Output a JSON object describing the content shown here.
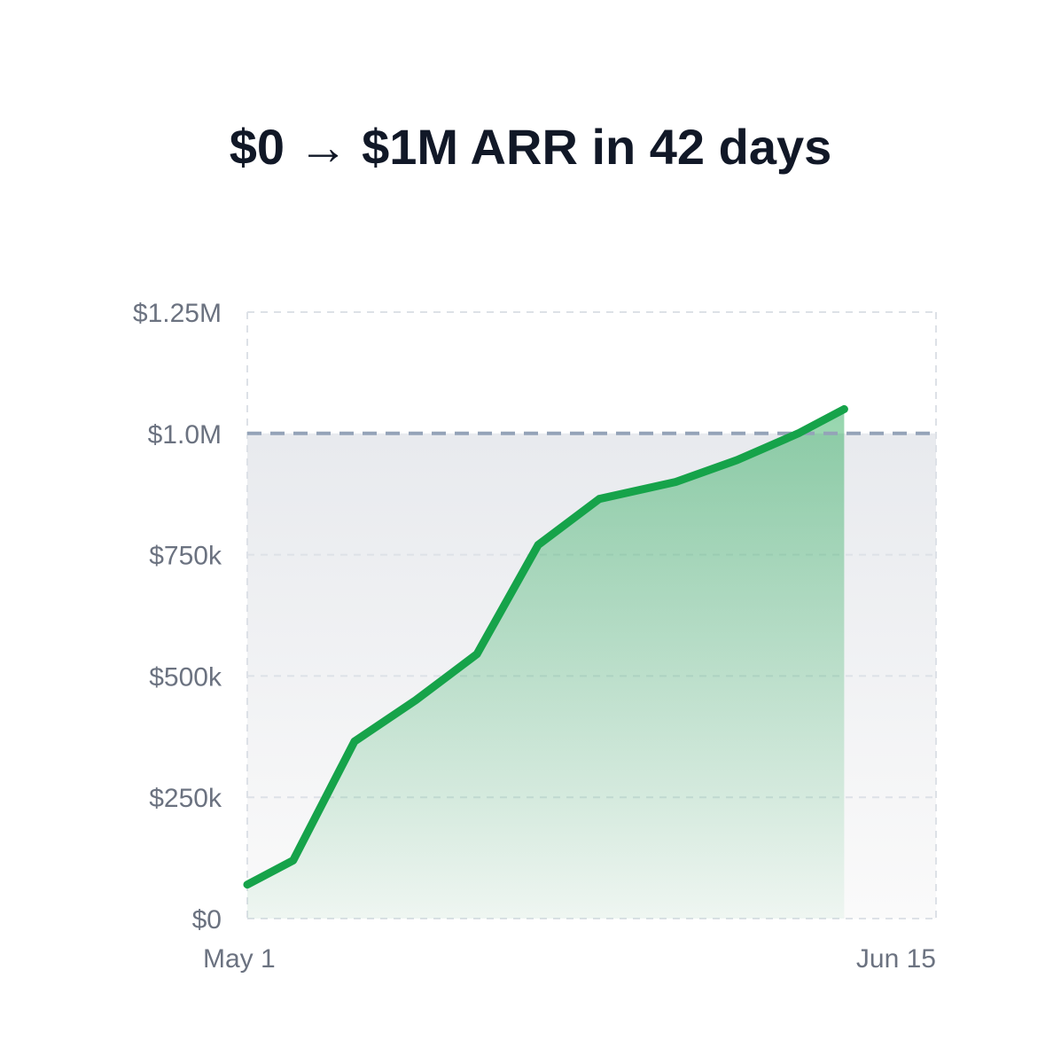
{
  "chart_data": {
    "type": "area",
    "title": "$0 → $1M ARR in 42 days",
    "xlabel": "",
    "ylabel": "",
    "x_tick_labels": [
      "May 1",
      "Jun 15"
    ],
    "y_ticks": [
      0,
      250000,
      500000,
      750000,
      1000000,
      1250000
    ],
    "y_tick_labels": [
      "$0",
      "$250k",
      "$500k",
      "$750k",
      "$1.0M",
      "$1.25M"
    ],
    "ylim": [
      0,
      1250000
    ],
    "reference_line": {
      "value": 1000000,
      "style": "dashed",
      "color": "#94a3b8"
    },
    "grid": true,
    "legend": "none",
    "series": [
      {
        "color": "#16a34a",
        "fill_color": "#16a34a",
        "points": [
          {
            "x": "May 1",
            "y": 70000
          },
          {
            "x": "May 4",
            "y": 120000
          },
          {
            "x": "May 8",
            "y": 365000
          },
          {
            "x": "May 12",
            "y": 450000
          },
          {
            "x": "May 16",
            "y": 545000
          },
          {
            "x": "May 20",
            "y": 770000
          },
          {
            "x": "May 24",
            "y": 865000
          },
          {
            "x": "May 29",
            "y": 900000
          },
          {
            "x": "Jun 2",
            "y": 945000
          },
          {
            "x": "Jun 6",
            "y": 1000000
          },
          {
            "x": "Jun 9",
            "y": 1050000
          }
        ]
      }
    ]
  }
}
